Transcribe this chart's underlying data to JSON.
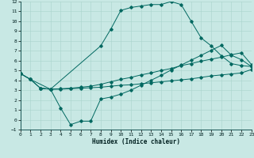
{
  "background_color": "#c8e8e4",
  "line_color": "#006860",
  "grid_color": "#a8d4cc",
  "xlabel": "Humidex (Indice chaleur)",
  "xlim": [
    0,
    23
  ],
  "ylim": [
    -1,
    12
  ],
  "xticks": [
    0,
    1,
    2,
    3,
    4,
    5,
    6,
    7,
    8,
    9,
    10,
    11,
    12,
    13,
    14,
    15,
    16,
    17,
    18,
    19,
    20,
    21,
    22,
    23
  ],
  "yticks": [
    -1,
    0,
    1,
    2,
    3,
    4,
    5,
    6,
    7,
    8,
    9,
    10,
    11,
    12
  ],
  "line1_x": [
    0,
    1,
    2,
    3,
    4,
    5,
    6,
    7,
    8,
    9,
    10,
    11,
    12,
    13,
    14,
    15,
    16,
    17,
    18,
    19,
    20,
    21,
    22,
    23
  ],
  "line1_y": [
    4.7,
    4.1,
    3.2,
    3.1,
    3.1,
    3.15,
    3.2,
    3.25,
    3.3,
    3.4,
    3.5,
    3.55,
    3.65,
    3.75,
    3.85,
    3.95,
    4.05,
    4.15,
    4.3,
    4.45,
    4.55,
    4.65,
    4.75,
    5.1
  ],
  "line2_x": [
    0,
    1,
    2,
    3,
    4,
    5,
    6,
    7,
    8,
    9,
    10,
    11,
    12,
    13,
    14,
    15,
    16,
    17,
    18,
    19,
    20,
    21,
    22,
    23
  ],
  "line2_y": [
    4.7,
    4.1,
    3.2,
    3.1,
    3.15,
    3.2,
    3.3,
    3.4,
    3.6,
    3.85,
    4.1,
    4.3,
    4.55,
    4.75,
    5.0,
    5.2,
    5.5,
    5.7,
    5.95,
    6.15,
    6.35,
    6.6,
    6.8,
    5.6
  ],
  "line3_x": [
    0,
    1,
    3,
    8,
    9,
    10,
    11,
    12,
    13,
    14,
    15,
    16,
    17,
    18,
    19,
    20,
    21,
    22,
    23
  ],
  "line3_y": [
    4.7,
    4.1,
    3.1,
    7.5,
    9.2,
    11.1,
    11.4,
    11.55,
    11.7,
    11.7,
    12.0,
    11.7,
    10.0,
    8.3,
    7.5,
    6.5,
    5.7,
    5.5,
    5.4
  ],
  "line4_x": [
    2,
    3,
    4,
    5,
    6,
    7,
    8,
    9,
    10,
    11,
    12,
    13,
    14,
    15,
    16,
    17,
    18,
    19,
    20,
    21,
    22,
    23
  ],
  "line4_y": [
    3.2,
    3.1,
    1.2,
    -0.5,
    -0.15,
    -0.15,
    2.1,
    2.3,
    2.6,
    3.0,
    3.5,
    4.0,
    4.5,
    5.05,
    5.55,
    6.05,
    6.55,
    7.05,
    7.55,
    6.55,
    6.1,
    5.4
  ]
}
